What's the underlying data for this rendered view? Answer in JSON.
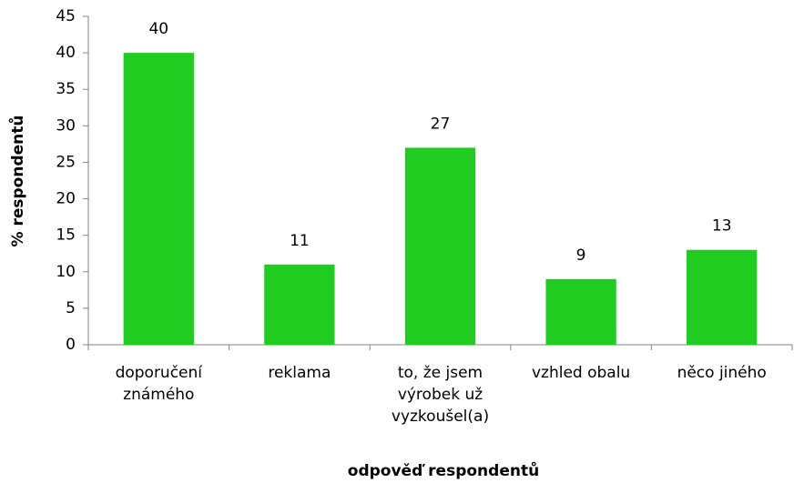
{
  "chart_data": {
    "type": "bar",
    "categories": [
      "doporučení známého",
      "reklama",
      "to, že jsem výrobek už vyzkoušel(a)",
      "vzhled obalu",
      "něco jiného"
    ],
    "values": [
      40,
      11,
      27,
      9,
      13
    ],
    "color": "#1fcc1f",
    "ylim": [
      0,
      45
    ],
    "yticks": [
      0,
      5,
      10,
      15,
      20,
      25,
      30,
      35,
      40,
      45
    ],
    "xlabel": "odpověď respondentů",
    "ylabel": "% respondentů"
  }
}
